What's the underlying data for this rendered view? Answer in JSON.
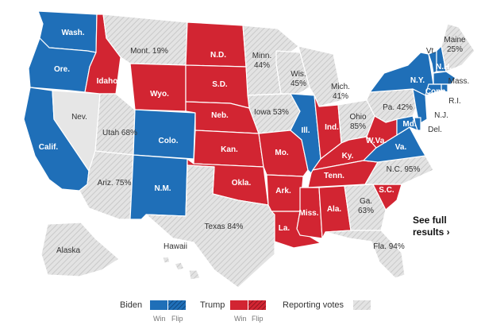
{
  "colors": {
    "biden": "#1f6fb8",
    "trump": "#d22532",
    "reporting": "#d4d4d4",
    "no_results": "#e6e6e6"
  },
  "states": {
    "wash": {
      "label": "Wash.",
      "status": "biden"
    },
    "ore": {
      "label": "Ore.",
      "status": "biden"
    },
    "calif": {
      "label": "Calif.",
      "status": "biden"
    },
    "nev": {
      "label": "Nev.",
      "status": "no-results"
    },
    "idaho": {
      "label": "Idaho",
      "status": "trump"
    },
    "mont": {
      "label": "Mont. 19%",
      "status": "reporting"
    },
    "wyo": {
      "label": "Wyo.",
      "status": "trump"
    },
    "utah": {
      "label": "Utah 68%",
      "status": "reporting"
    },
    "colo": {
      "label": "Colo.",
      "status": "biden"
    },
    "ariz": {
      "label": "Ariz. 75%",
      "status": "reporting"
    },
    "nm": {
      "label": "N.M.",
      "status": "biden"
    },
    "nd": {
      "label": "N.D.",
      "status": "trump"
    },
    "sd": {
      "label": "S.D.",
      "status": "trump"
    },
    "neb": {
      "label": "Neb.",
      "status": "trump"
    },
    "kan": {
      "label": "Kan.",
      "status": "trump"
    },
    "okla": {
      "label": "Okla.",
      "status": "trump"
    },
    "texas": {
      "label": "Texas 84%",
      "status": "reporting"
    },
    "minn": {
      "label_line1": "Minn.",
      "label_line2": "44%",
      "status": "reporting"
    },
    "iowa": {
      "label": "Iowa 53%",
      "status": "reporting"
    },
    "mo": {
      "label": "Mo.",
      "status": "trump"
    },
    "ark": {
      "label": "Ark.",
      "status": "trump"
    },
    "la": {
      "label": "La.",
      "status": "trump"
    },
    "wis": {
      "label_line1": "Wis.",
      "label_line2": "45%",
      "status": "reporting"
    },
    "ill": {
      "label": "Ill.",
      "status": "biden"
    },
    "mich": {
      "label_line1": "Mich.",
      "label_line2": "41%",
      "status": "reporting"
    },
    "ind": {
      "label": "Ind.",
      "status": "trump"
    },
    "ohio": {
      "label_line1": "Ohio",
      "label_line2": "85%",
      "status": "reporting"
    },
    "ky": {
      "label": "Ky.",
      "status": "trump"
    },
    "tenn": {
      "label": "Tenn.",
      "status": "trump"
    },
    "miss": {
      "label": "Miss.",
      "status": "trump"
    },
    "ala": {
      "label": "Ala.",
      "status": "trump"
    },
    "ga": {
      "label_line1": "Ga.",
      "label_line2": "63%",
      "status": "reporting"
    },
    "fla": {
      "label": "Fla. 94%",
      "status": "reporting"
    },
    "sc": {
      "label": "S.C.",
      "status": "trump"
    },
    "nc": {
      "label": "N.C. 95%",
      "status": "reporting"
    },
    "va": {
      "label": "Va.",
      "status": "biden"
    },
    "wva": {
      "label": "W.Va.",
      "status": "trump"
    },
    "pa": {
      "label": "Pa. 42%",
      "status": "reporting"
    },
    "ny": {
      "label": "N.Y.",
      "status": "biden"
    },
    "vt": {
      "label": "Vt.",
      "status": "biden"
    },
    "nh": {
      "label": "N.H.",
      "status": "biden"
    },
    "maine": {
      "label_line1": "Maine",
      "label_line2": "25%",
      "status": "reporting"
    },
    "mass": {
      "label": "Mass.",
      "status": "biden"
    },
    "ri": {
      "label": "R.I.",
      "status": "biden"
    },
    "conn": {
      "label": "Conn.",
      "status": "biden"
    },
    "nj": {
      "label": "N.J.",
      "status": "biden"
    },
    "del": {
      "label": "Del.",
      "status": "biden"
    },
    "md": {
      "label": "Md.",
      "status": "biden"
    },
    "alaska": {
      "label": "Alaska",
      "status": "reporting"
    },
    "hawaii": {
      "label": "Hawaii",
      "status": "reporting"
    }
  },
  "see_full": {
    "line1": "See full",
    "line2": "results ›"
  },
  "legend": {
    "biden": "Biden",
    "trump": "Trump",
    "reporting": "Reporting votes",
    "win": "Win",
    "flip": "Flip"
  }
}
